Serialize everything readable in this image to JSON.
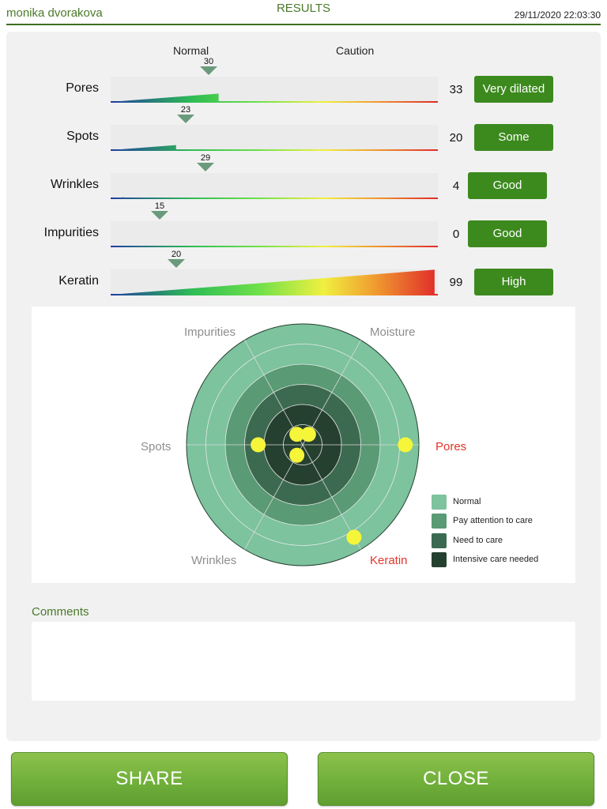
{
  "header": {
    "user": "monika dvorakova",
    "title": "RESULTS",
    "timestamp": "29/11/2020 22:03:30"
  },
  "scale": {
    "normal_label": "Normal",
    "caution_label": "Caution",
    "max": 100
  },
  "rows": [
    {
      "label": "Pores",
      "marker": 30,
      "score": 33,
      "status": "Very dilated"
    },
    {
      "label": "Spots",
      "marker": 23,
      "score": 20,
      "status": "Some"
    },
    {
      "label": "Wrinkles",
      "marker": 29,
      "score": 4,
      "status": "Good"
    },
    {
      "label": "Impurities",
      "marker": 15,
      "score": 0,
      "status": "Good"
    },
    {
      "label": "Keratin",
      "marker": 20,
      "score": 99,
      "status": "High"
    }
  ],
  "radar": {
    "axes": [
      "Pores",
      "Moisture",
      "Impurities",
      "Spots",
      "Wrinkles",
      "Keratin"
    ],
    "highlighted_axes": [
      "Pores",
      "Keratin"
    ],
    "rings": 6,
    "levels": [
      {
        "name": "Normal",
        "color": "#7cc39e"
      },
      {
        "name": "Pay attention to care",
        "color": "#5a9a74"
      },
      {
        "name": "Need to care",
        "color": "#3c6a50"
      },
      {
        "name": "Intensive care needed",
        "color": "#26402f"
      }
    ],
    "points_ring": {
      "Pores": 5.3,
      "Moisture": 0.6,
      "Impurities": 0.6,
      "Spots": 2.3,
      "Wrinkles": 0.6,
      "Keratin": 5.3
    },
    "point_color": "#f5f53a"
  },
  "comments": {
    "label": "Comments",
    "value": ""
  },
  "actions": {
    "share": "SHARE",
    "close": "CLOSE"
  }
}
